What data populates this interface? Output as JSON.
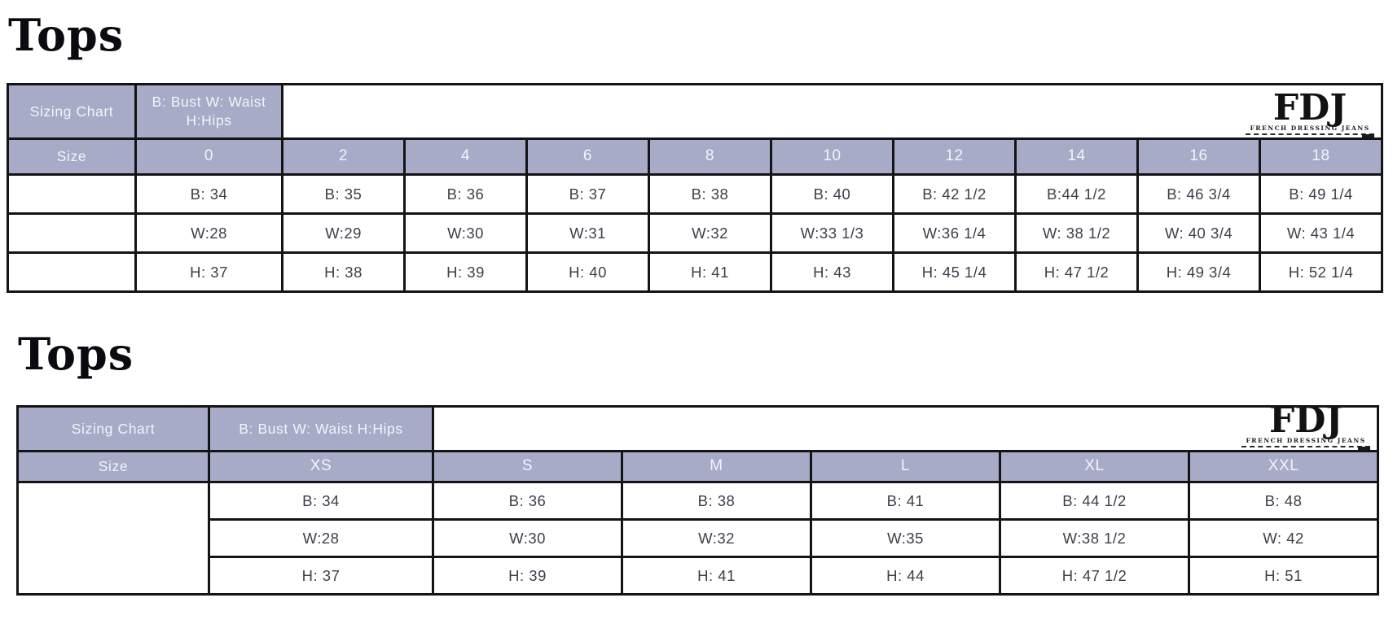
{
  "colors": {
    "header_bg": "#a7abc8",
    "header_text": "#f3f4f8",
    "border": "#141414",
    "data_text": "#3c404b",
    "title_text": "#0a0a10"
  },
  "logo": {
    "text": "FDJ",
    "subtext": "FRENCH DRESSING JEANS"
  },
  "section1": {
    "title": "Tops",
    "table": {
      "corner_label": "Sizing Chart",
      "legend": "B: Bust W: Waist H:Hips",
      "size_label": "Size",
      "sizes": [
        "0",
        "2",
        "4",
        "6",
        "8",
        "10",
        "12",
        "14",
        "16",
        "18"
      ],
      "rows": [
        [
          "B: 34",
          "B: 35",
          "B: 36",
          "B: 37",
          "B: 38",
          "B: 40",
          "B: 42 1/2",
          "B:44 1/2",
          "B: 46 3/4",
          "B: 49 1/4"
        ],
        [
          "W:28",
          "W:29",
          "W:30",
          "W:31",
          "W:32",
          "W:33 1/3",
          "W:36 1/4",
          "W: 38 1/2",
          "W: 40 3/4",
          "W: 43 1/4"
        ],
        [
          "H: 37",
          "H: 38",
          "H: 39",
          "H: 40",
          "H: 41",
          "H: 43",
          "H: 45 1/4",
          "H: 47 1/2",
          "H: 49 3/4",
          "H: 52 1/4"
        ]
      ]
    }
  },
  "section2": {
    "title": "Tops",
    "table": {
      "corner_label": "Sizing Chart",
      "legend": "B: Bust W: Waist H:Hips",
      "size_label": "Size",
      "sizes": [
        "XS",
        "S",
        "M",
        "L",
        "XL",
        "XXL"
      ],
      "rows": [
        [
          "B: 34",
          "B: 36",
          "B: 38",
          "B: 41",
          "B: 44 1/2",
          "B: 48"
        ],
        [
          "W:28",
          "W:30",
          "W:32",
          "W:35",
          "W:38 1/2",
          "W: 42"
        ],
        [
          "H: 37",
          "H: 39",
          "H: 41",
          "H: 44",
          "H: 47 1/2",
          "H: 51"
        ]
      ]
    }
  }
}
